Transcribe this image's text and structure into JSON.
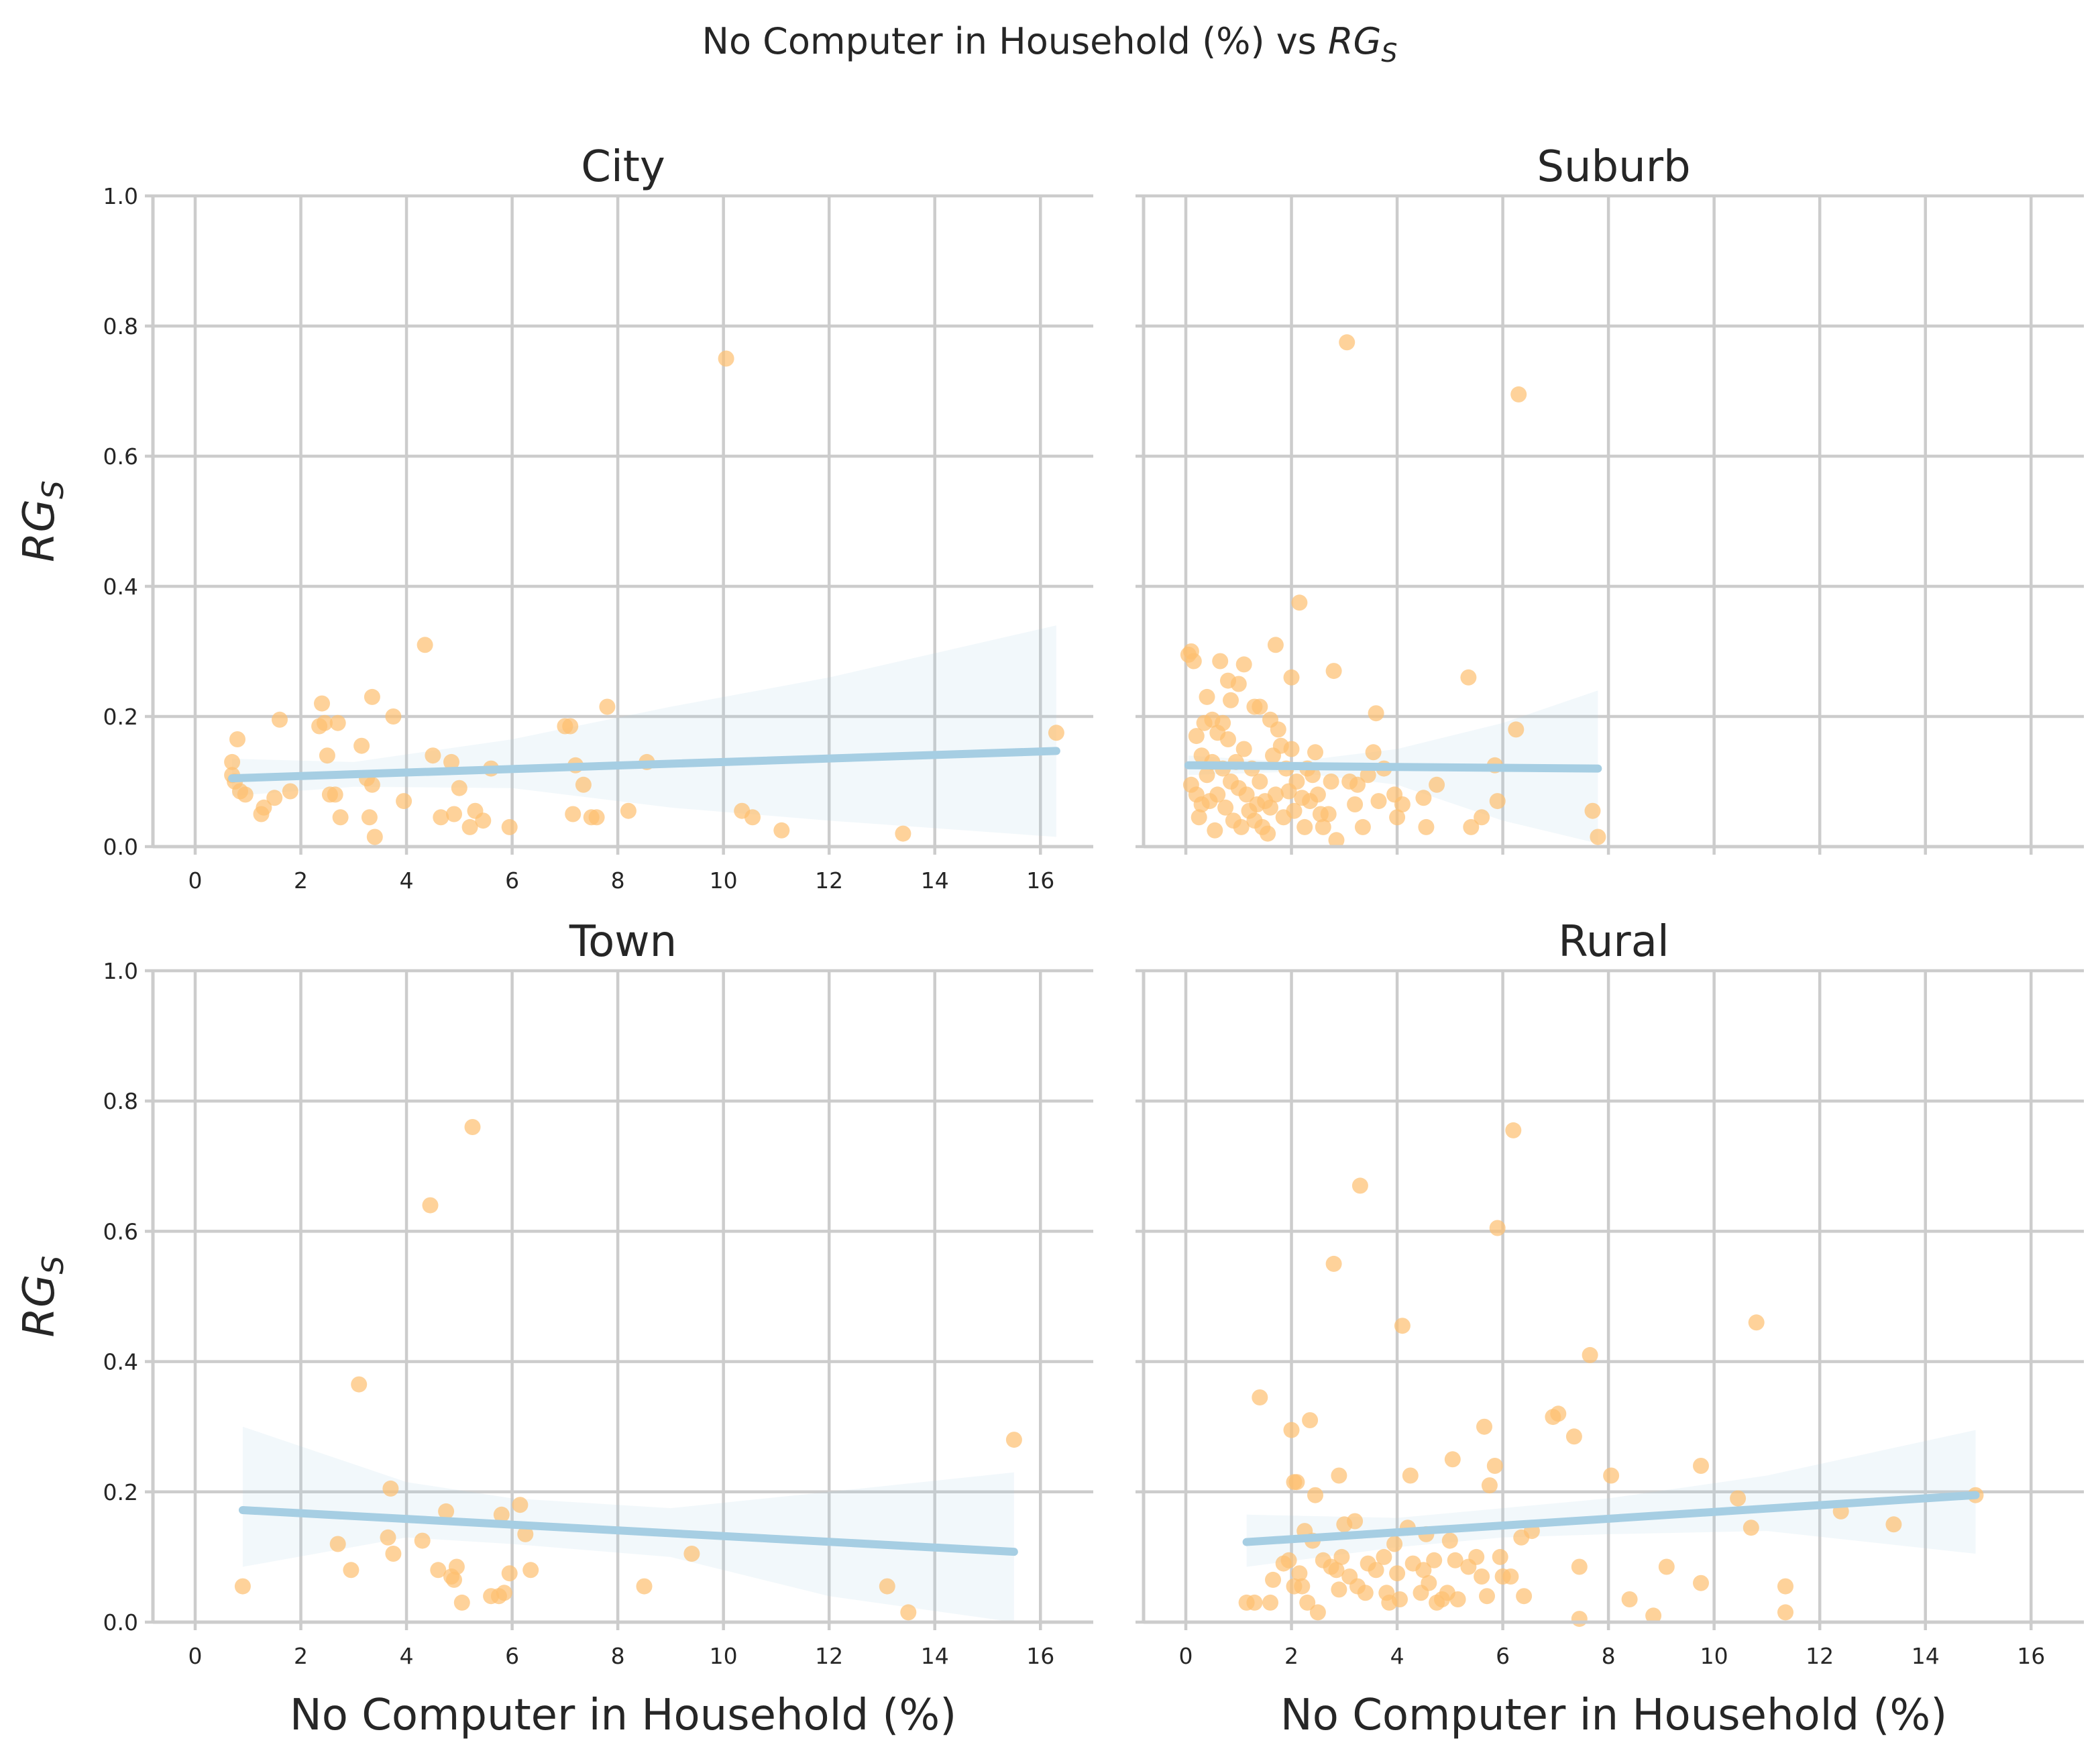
{
  "suptitle": {
    "text": "No Computer in Household (%) vs ",
    "symbol": "RG",
    "subscript": "S"
  },
  "colors": {
    "points": "#fdbf6f",
    "line": "#a6cee3",
    "band": "#a6cee3",
    "grid": "#cccccc",
    "text": "#262626"
  },
  "chart_data": [
    {
      "type": "scatter",
      "title": "City",
      "xlabel": "",
      "ylabel": {
        "symbol": "RG",
        "subscript": "S"
      },
      "xlim": [
        -0.8,
        17.0
      ],
      "ylim": [
        0,
        1.0
      ],
      "xticks": [
        "0",
        "2",
        "4",
        "6",
        "8",
        "10",
        "12",
        "14",
        "16"
      ],
      "yticks": [
        "0.0",
        "0.2",
        "0.4",
        "0.6",
        "0.8",
        "1.0"
      ],
      "grid": true,
      "points": [
        [
          0.7,
          0.11
        ],
        [
          0.7,
          0.13
        ],
        [
          0.75,
          0.1
        ],
        [
          0.8,
          0.165
        ],
        [
          0.85,
          0.085
        ],
        [
          0.95,
          0.08
        ],
        [
          1.25,
          0.05
        ],
        [
          1.3,
          0.06
        ],
        [
          1.5,
          0.075
        ],
        [
          1.6,
          0.195
        ],
        [
          1.8,
          0.085
        ],
        [
          2.35,
          0.185
        ],
        [
          2.4,
          0.22
        ],
        [
          2.45,
          0.19
        ],
        [
          2.5,
          0.14
        ],
        [
          2.55,
          0.08
        ],
        [
          2.65,
          0.08
        ],
        [
          2.7,
          0.19
        ],
        [
          2.75,
          0.045
        ],
        [
          3.15,
          0.155
        ],
        [
          3.25,
          0.105
        ],
        [
          3.3,
          0.045
        ],
        [
          3.35,
          0.23
        ],
        [
          3.35,
          0.095
        ],
        [
          3.4,
          0.015
        ],
        [
          3.75,
          0.2
        ],
        [
          3.95,
          0.07
        ],
        [
          4.35,
          0.31
        ],
        [
          4.5,
          0.14
        ],
        [
          4.65,
          0.045
        ],
        [
          4.85,
          0.13
        ],
        [
          4.9,
          0.05
        ],
        [
          5.0,
          0.09
        ],
        [
          5.2,
          0.03
        ],
        [
          5.3,
          0.055
        ],
        [
          5.45,
          0.04
        ],
        [
          5.6,
          0.12
        ],
        [
          5.95,
          0.03
        ],
        [
          7.0,
          0.185
        ],
        [
          7.1,
          0.185
        ],
        [
          7.15,
          0.05
        ],
        [
          7.2,
          0.125
        ],
        [
          7.35,
          0.095
        ],
        [
          7.5,
          0.045
        ],
        [
          7.6,
          0.045
        ],
        [
          7.8,
          0.215
        ],
        [
          8.2,
          0.055
        ],
        [
          8.55,
          0.13
        ],
        [
          10.05,
          0.75
        ],
        [
          10.35,
          0.055
        ],
        [
          10.55,
          0.045
        ],
        [
          11.1,
          0.025
        ],
        [
          13.4,
          0.02
        ],
        [
          16.3,
          0.175
        ]
      ],
      "fit": {
        "x": [
          0.7,
          16.3
        ],
        "y": [
          0.105,
          0.147
        ]
      },
      "ci": {
        "x": [
          0.7,
          3,
          6,
          9,
          12,
          16.3
        ],
        "upper": [
          0.135,
          0.13,
          0.165,
          0.215,
          0.26,
          0.34
        ],
        "lower": [
          0.078,
          0.092,
          0.09,
          0.06,
          0.04,
          0.015
        ]
      }
    },
    {
      "type": "scatter",
      "title": "Suburb",
      "xlabel": "",
      "ylabel": {
        "symbol": "",
        "subscript": ""
      },
      "xlim": [
        -0.8,
        17.0
      ],
      "ylim": [
        0,
        1.0
      ],
      "xticks": [],
      "yticks": [],
      "grid": true,
      "points": [
        [
          0.05,
          0.295
        ],
        [
          0.1,
          0.3
        ],
        [
          0.15,
          0.285
        ],
        [
          0.1,
          0.095
        ],
        [
          0.2,
          0.17
        ],
        [
          0.2,
          0.08
        ],
        [
          0.25,
          0.045
        ],
        [
          0.3,
          0.14
        ],
        [
          0.3,
          0.065
        ],
        [
          0.35,
          0.19
        ],
        [
          0.4,
          0.23
        ],
        [
          0.4,
          0.11
        ],
        [
          0.45,
          0.07
        ],
        [
          0.5,
          0.195
        ],
        [
          0.5,
          0.13
        ],
        [
          0.55,
          0.025
        ],
        [
          0.6,
          0.175
        ],
        [
          0.6,
          0.08
        ],
        [
          0.65,
          0.285
        ],
        [
          0.7,
          0.19
        ],
        [
          0.7,
          0.12
        ],
        [
          0.75,
          0.06
        ],
        [
          0.8,
          0.255
        ],
        [
          0.8,
          0.165
        ],
        [
          0.85,
          0.225
        ],
        [
          0.85,
          0.1
        ],
        [
          0.9,
          0.04
        ],
        [
          0.95,
          0.13
        ],
        [
          1.0,
          0.25
        ],
        [
          1.0,
          0.09
        ],
        [
          1.05,
          0.03
        ],
        [
          1.1,
          0.28
        ],
        [
          1.1,
          0.15
        ],
        [
          1.15,
          0.08
        ],
        [
          1.2,
          0.055
        ],
        [
          1.25,
          0.12
        ],
        [
          1.3,
          0.215
        ],
        [
          1.3,
          0.04
        ],
        [
          1.35,
          0.065
        ],
        [
          1.4,
          0.215
        ],
        [
          1.4,
          0.1
        ],
        [
          1.45,
          0.03
        ],
        [
          1.5,
          0.07
        ],
        [
          1.55,
          0.02
        ],
        [
          1.6,
          0.195
        ],
        [
          1.6,
          0.06
        ],
        [
          1.65,
          0.14
        ],
        [
          1.7,
          0.31
        ],
        [
          1.7,
          0.08
        ],
        [
          1.75,
          0.18
        ],
        [
          1.8,
          0.155
        ],
        [
          1.85,
          0.045
        ],
        [
          1.9,
          0.12
        ],
        [
          1.95,
          0.085
        ],
        [
          2.0,
          0.26
        ],
        [
          2.0,
          0.15
        ],
        [
          2.05,
          0.055
        ],
        [
          2.1,
          0.1
        ],
        [
          2.15,
          0.375
        ],
        [
          2.2,
          0.075
        ],
        [
          2.25,
          0.03
        ],
        [
          2.3,
          0.12
        ],
        [
          2.35,
          0.07
        ],
        [
          2.4,
          0.11
        ],
        [
          2.45,
          0.145
        ],
        [
          2.5,
          0.08
        ],
        [
          2.55,
          0.05
        ],
        [
          2.6,
          0.03
        ],
        [
          2.7,
          0.05
        ],
        [
          2.75,
          0.1
        ],
        [
          2.8,
          0.27
        ],
        [
          2.85,
          0.01
        ],
        [
          3.05,
          0.775
        ],
        [
          3.1,
          0.1
        ],
        [
          3.2,
          0.065
        ],
        [
          3.25,
          0.095
        ],
        [
          3.35,
          0.03
        ],
        [
          3.45,
          0.11
        ],
        [
          3.55,
          0.145
        ],
        [
          3.6,
          0.205
        ],
        [
          3.65,
          0.07
        ],
        [
          3.75,
          0.12
        ],
        [
          3.95,
          0.08
        ],
        [
          4.0,
          0.045
        ],
        [
          4.1,
          0.065
        ],
        [
          4.5,
          0.075
        ],
        [
          4.55,
          0.03
        ],
        [
          4.75,
          0.095
        ],
        [
          5.35,
          0.26
        ],
        [
          5.4,
          0.03
        ],
        [
          5.6,
          0.045
        ],
        [
          5.85,
          0.125
        ],
        [
          5.9,
          0.07
        ],
        [
          6.25,
          0.18
        ],
        [
          6.3,
          0.695
        ],
        [
          7.7,
          0.055
        ],
        [
          7.8,
          0.015
        ]
      ],
      "fit": {
        "x": [
          0.05,
          7.8
        ],
        "y": [
          0.125,
          0.12
        ]
      },
      "ci": {
        "x": [
          0.05,
          2,
          4,
          6,
          7.8
        ],
        "upper": [
          0.14,
          0.13,
          0.15,
          0.19,
          0.24
        ],
        "lower": [
          0.11,
          0.115,
          0.095,
          0.04,
          0.005
        ]
      }
    },
    {
      "type": "scatter",
      "title": "Town",
      "xlabel": "No Computer in Household (%)",
      "ylabel": {
        "symbol": "RG",
        "subscript": "S"
      },
      "xlim": [
        -0.8,
        17.0
      ],
      "ylim": [
        0,
        1.0
      ],
      "xticks": [
        "0",
        "2",
        "4",
        "6",
        "8",
        "10",
        "12",
        "14",
        "16"
      ],
      "yticks": [
        "0.0",
        "0.2",
        "0.4",
        "0.6",
        "0.8",
        "1.0"
      ],
      "grid": true,
      "points": [
        [
          0.9,
          0.055
        ],
        [
          2.7,
          0.12
        ],
        [
          2.95,
          0.08
        ],
        [
          3.1,
          0.365
        ],
        [
          3.65,
          0.13
        ],
        [
          3.7,
          0.205
        ],
        [
          3.75,
          0.105
        ],
        [
          4.3,
          0.125
        ],
        [
          4.45,
          0.64
        ],
        [
          4.6,
          0.08
        ],
        [
          4.75,
          0.17
        ],
        [
          4.85,
          0.07
        ],
        [
          4.9,
          0.065
        ],
        [
          4.95,
          0.085
        ],
        [
          5.05,
          0.03
        ],
        [
          5.25,
          0.76
        ],
        [
          5.6,
          0.04
        ],
        [
          5.75,
          0.04
        ],
        [
          5.8,
          0.165
        ],
        [
          5.85,
          0.045
        ],
        [
          5.95,
          0.075
        ],
        [
          6.15,
          0.18
        ],
        [
          6.25,
          0.135
        ],
        [
          6.35,
          0.08
        ],
        [
          8.5,
          0.055
        ],
        [
          9.4,
          0.105
        ],
        [
          13.1,
          0.055
        ],
        [
          13.5,
          0.015
        ],
        [
          15.5,
          0.28
        ]
      ],
      "fit": {
        "x": [
          0.9,
          15.5
        ],
        "y": [
          0.172,
          0.108
        ]
      },
      "ci": {
        "x": [
          0.9,
          4,
          6,
          9,
          12,
          15.5
        ],
        "upper": [
          0.3,
          0.215,
          0.19,
          0.175,
          0.2,
          0.23
        ],
        "lower": [
          0.085,
          0.13,
          0.12,
          0.1,
          0.04,
          0.0
        ]
      }
    },
    {
      "type": "scatter",
      "title": "Rural",
      "xlabel": "No Computer in Household (%)",
      "ylabel": {
        "symbol": "",
        "subscript": ""
      },
      "xlim": [
        -0.8,
        17.0
      ],
      "ylim": [
        0,
        1.0
      ],
      "xticks": [
        "0",
        "2",
        "4",
        "6",
        "8",
        "10",
        "12",
        "14",
        "16"
      ],
      "yticks": [],
      "grid": true,
      "points": [
        [
          1.15,
          0.03
        ],
        [
          1.3,
          0.03
        ],
        [
          1.4,
          0.345
        ],
        [
          1.6,
          0.03
        ],
        [
          1.65,
          0.065
        ],
        [
          1.85,
          0.09
        ],
        [
          1.95,
          0.095
        ],
        [
          2.0,
          0.295
        ],
        [
          2.05,
          0.215
        ],
        [
          2.05,
          0.055
        ],
        [
          2.1,
          0.215
        ],
        [
          2.15,
          0.075
        ],
        [
          2.2,
          0.055
        ],
        [
          2.25,
          0.14
        ],
        [
          2.3,
          0.03
        ],
        [
          2.35,
          0.31
        ],
        [
          2.4,
          0.125
        ],
        [
          2.45,
          0.195
        ],
        [
          2.5,
          0.015
        ],
        [
          2.6,
          0.095
        ],
        [
          2.75,
          0.085
        ],
        [
          2.8,
          0.55
        ],
        [
          2.85,
          0.08
        ],
        [
          2.9,
          0.225
        ],
        [
          2.9,
          0.05
        ],
        [
          2.95,
          0.1
        ],
        [
          3.0,
          0.15
        ],
        [
          3.1,
          0.07
        ],
        [
          3.2,
          0.155
        ],
        [
          3.25,
          0.055
        ],
        [
          3.3,
          0.67
        ],
        [
          3.4,
          0.045
        ],
        [
          3.45,
          0.09
        ],
        [
          3.6,
          0.08
        ],
        [
          3.75,
          0.1
        ],
        [
          3.8,
          0.045
        ],
        [
          3.85,
          0.03
        ],
        [
          3.95,
          0.12
        ],
        [
          4.0,
          0.075
        ],
        [
          4.05,
          0.035
        ],
        [
          4.1,
          0.455
        ],
        [
          4.2,
          0.145
        ],
        [
          4.25,
          0.225
        ],
        [
          4.3,
          0.09
        ],
        [
          4.45,
          0.045
        ],
        [
          4.5,
          0.08
        ],
        [
          4.55,
          0.135
        ],
        [
          4.6,
          0.06
        ],
        [
          4.7,
          0.095
        ],
        [
          4.75,
          0.03
        ],
        [
          4.85,
          0.035
        ],
        [
          4.95,
          0.045
        ],
        [
          5.0,
          0.125
        ],
        [
          5.05,
          0.25
        ],
        [
          5.1,
          0.095
        ],
        [
          5.15,
          0.035
        ],
        [
          5.35,
          0.085
        ],
        [
          5.5,
          0.1
        ],
        [
          5.6,
          0.07
        ],
        [
          5.65,
          0.3
        ],
        [
          5.7,
          0.04
        ],
        [
          5.75,
          0.21
        ],
        [
          5.85,
          0.24
        ],
        [
          5.9,
          0.605
        ],
        [
          5.95,
          0.1
        ],
        [
          6.0,
          0.07
        ],
        [
          6.15,
          0.07
        ],
        [
          6.2,
          0.755
        ],
        [
          6.35,
          0.13
        ],
        [
          6.4,
          0.04
        ],
        [
          6.55,
          0.14
        ],
        [
          6.95,
          0.315
        ],
        [
          7.05,
          0.32
        ],
        [
          7.35,
          0.285
        ],
        [
          7.45,
          0.085
        ],
        [
          7.45,
          0.005
        ],
        [
          7.65,
          0.41
        ],
        [
          8.05,
          0.225
        ],
        [
          8.4,
          0.035
        ],
        [
          8.85,
          0.01
        ],
        [
          9.1,
          0.085
        ],
        [
          9.75,
          0.24
        ],
        [
          9.75,
          0.06
        ],
        [
          10.45,
          0.19
        ],
        [
          10.7,
          0.145
        ],
        [
          10.8,
          0.46
        ],
        [
          11.35,
          0.055
        ],
        [
          11.35,
          0.015
        ],
        [
          12.4,
          0.17
        ],
        [
          13.4,
          0.15
        ],
        [
          14.95,
          0.195
        ]
      ],
      "fit": {
        "x": [
          1.15,
          14.95
        ],
        "y": [
          0.123,
          0.195
        ]
      },
      "ci": {
        "x": [
          1.15,
          4,
          6,
          8,
          11,
          14.95
        ],
        "upper": [
          0.165,
          0.16,
          0.175,
          0.19,
          0.225,
          0.295
        ],
        "lower": [
          0.085,
          0.115,
          0.13,
          0.135,
          0.14,
          0.105
        ]
      }
    }
  ]
}
